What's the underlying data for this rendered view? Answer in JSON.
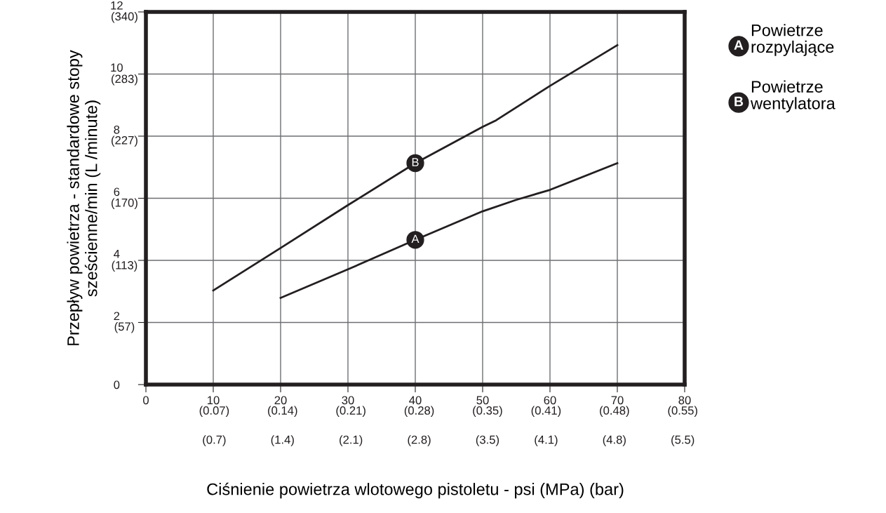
{
  "chart_data": {
    "type": "line",
    "xlabel": "Ciśnienie powietrza wlotowego pistoletu - psi (MPa) (bar)",
    "ylabel": "Przepływ powietrza - standardowe stopy\nsześcienne/min (L /minute)",
    "xlim": [
      0,
      80
    ],
    "ylim": [
      0,
      12
    ],
    "xticks": [
      0,
      10,
      20,
      30,
      40,
      50,
      60,
      70,
      80
    ],
    "x2lim": [
      0,
      0.552
    ],
    "x2ticks": [
      {
        "value": 0.07,
        "label": "(0.07)"
      },
      {
        "value": 0.14,
        "label": "(0.14)"
      },
      {
        "value": 0.21,
        "label": "(0.21)"
      },
      {
        "value": 0.28,
        "label": "(0.28)"
      },
      {
        "value": 0.35,
        "label": "(0.35)"
      },
      {
        "value": 0.41,
        "label": "(0.41)"
      },
      {
        "value": 0.48,
        "label": "(0.48)"
      },
      {
        "value": 0.55,
        "label": "(0.55)"
      }
    ],
    "yticks": [
      0,
      2,
      4,
      6,
      8,
      10,
      12
    ],
    "y2lim": [
      0,
      340
    ],
    "y2ticks": [
      {
        "value": 57,
        "label": "(57)"
      },
      {
        "value": 113,
        "label": "(113)"
      },
      {
        "value": 170,
        "label": "(170)"
      },
      {
        "value": 227,
        "label": "(227)"
      },
      {
        "value": 283,
        "label": "(283)"
      },
      {
        "value": 340,
        "label": "(340)"
      }
    ],
    "grid": true,
    "series": [
      {
        "color": "#231f20",
        "x": [
          20,
          30,
          40,
          50,
          55,
          60,
          70
        ],
        "values": [
          2.79,
          3.71,
          4.66,
          5.58,
          5.95,
          6.27,
          7.13
        ]
      },
      {
        "color": "#231f20",
        "x": [
          10,
          20,
          30,
          40,
          50,
          52,
          60,
          70
        ],
        "values": [
          3.03,
          4.4,
          5.78,
          7.13,
          8.3,
          8.51,
          9.62,
          10.93
        ]
      }
    ],
    "annotations": [
      {
        "text": "A",
        "x": 40,
        "y": 4.66
      },
      {
        "text": "B",
        "x": 40,
        "y": 7.13
      },
      "A",
      "Powietrze\nrozpylające",
      "B",
      "Powietrze\nwentylatora",
      "(0.7)",
      "(1.4)",
      "(2.1)",
      "(2.8)",
      "(3.5)",
      "(4.1)",
      "(4.8)",
      "(5.5)"
    ]
  }
}
